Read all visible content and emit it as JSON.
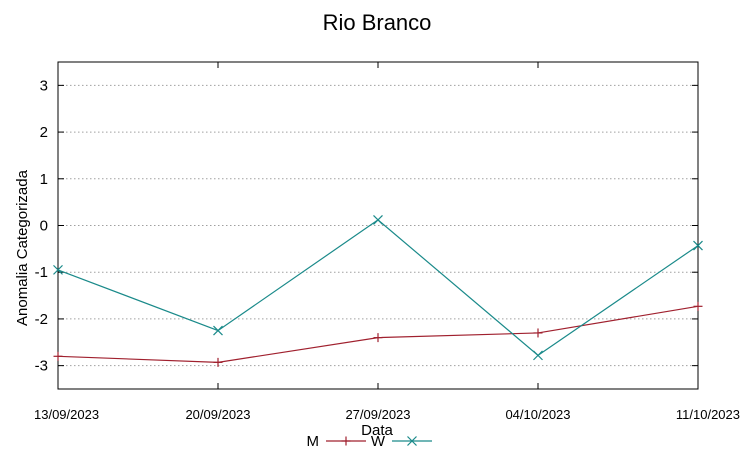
{
  "chart_data": {
    "type": "line",
    "title": "Rio Branco",
    "xlabel": "Data",
    "ylabel": "Anomalia Categorizada",
    "categories": [
      "13/09/2023",
      "20/09/2023",
      "27/09/2023",
      "04/10/2023",
      "11/10/2023"
    ],
    "ylim": [
      -3.5,
      3.5
    ],
    "yticks": [
      "3",
      "2",
      "1",
      "0",
      "-1",
      "-2",
      "-3"
    ],
    "grid": true,
    "legend_position": "bottom-center",
    "series": [
      {
        "name": "M",
        "color": "#a0202e",
        "marker": "plus",
        "values": [
          -2.8,
          -2.93,
          -2.4,
          -2.3,
          -1.73
        ]
      },
      {
        "name": "W",
        "color": "#1a8a8a",
        "marker": "cross",
        "values": [
          -0.95,
          -2.25,
          0.12,
          -2.78,
          -0.43
        ]
      }
    ]
  }
}
